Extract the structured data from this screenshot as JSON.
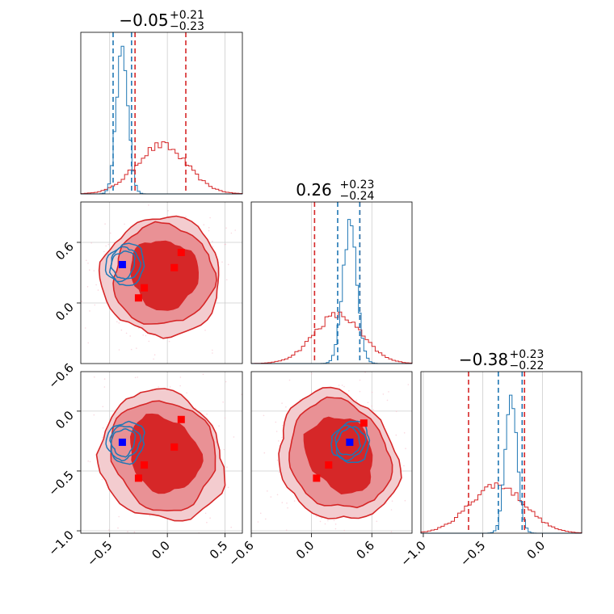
{
  "chart_data": {
    "type": "corner",
    "colors": {
      "red": "#d62728",
      "blue": "#1f77b4",
      "marker_red": "#ff0000",
      "marker_blue": "#0000ff",
      "grid": "#cccccc"
    },
    "titles": [
      {
        "central": "−0.05",
        "plus": "+0.21",
        "minus": "−0.23"
      },
      {
        "central": "0.26",
        "plus": "+0.23",
        "minus": "−0.24"
      },
      {
        "central": "−0.38",
        "plus": "+0.23",
        "minus": "−0.22"
      }
    ],
    "params": [
      {
        "range": [
          -0.75,
          0.65
        ],
        "ticks": [
          -0.5,
          0.0,
          0.5
        ],
        "tick_labels": [
          "−0.5",
          "0.0",
          "0.5"
        ]
      },
      {
        "range": [
          -0.6,
          1.0
        ],
        "ticks": [
          -0.6,
          0.0,
          0.6
        ],
        "tick_labels": [
          "−0.6",
          "0.0",
          "0.6"
        ]
      },
      {
        "range": [
          -1.02,
          0.33
        ],
        "ticks": [
          -1.0,
          -0.5,
          0.0
        ],
        "tick_labels": [
          "−1.0",
          "−0.5",
          "0.0"
        ]
      }
    ],
    "y_ticks": {
      "row1": {
        "ticks": [
          0.0,
          0.6
        ],
        "labels": [
          "0.0",
          "0.6"
        ]
      },
      "row2": {
        "ticks": [
          -1.0,
          -0.5,
          0.0
        ],
        "labels": [
          "−1.0",
          "−0.5",
          "0.0"
        ]
      }
    },
    "stray_label": "−0.6",
    "quantiles": {
      "red": [
        [
          -0.28,
          0.16
        ],
        [
          0.03,
          0.48
        ],
        [
          -0.62,
          -0.15
        ]
      ],
      "blue": [
        [
          -0.47,
          -0.31
        ],
        [
          0.26,
          0.48
        ],
        [
          -0.37,
          -0.17
        ]
      ]
    },
    "markers": {
      "red": [
        [
          -0.2,
          0.15
        ],
        [
          -0.25,
          0.05
        ],
        [
          0.06,
          0.35
        ],
        [
          0.12,
          0.5
        ]
      ],
      "blue": [
        -0.39,
        0.38
      ]
    },
    "histograms": {
      "red": [
        {
          "mean": -0.05,
          "sd": 0.22,
          "skew": 0.02
        },
        {
          "mean": 0.26,
          "sd": 0.24,
          "skew": 0.0
        },
        {
          "mean": -0.38,
          "sd": 0.23,
          "skew": -0.03
        }
      ],
      "blue": [
        {
          "mean": -0.39,
          "sd": 0.05,
          "peak": 0.92
        },
        {
          "mean": 0.38,
          "sd": 0.07,
          "peak": 0.85
        },
        {
          "mean": -0.26,
          "sd": 0.05,
          "peak": 0.85
        }
      ]
    }
  }
}
